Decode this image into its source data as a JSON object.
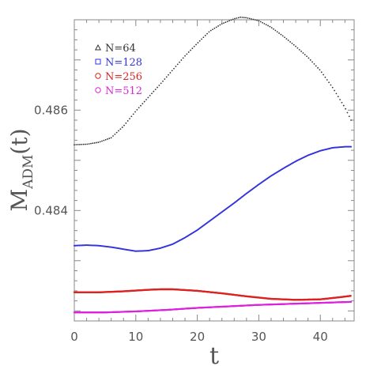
{
  "chart_data": {
    "type": "scatter",
    "title": "",
    "xlabel": "t",
    "ylabel": {
      "main": "M",
      "sub": "ADM",
      "arg": "(t)"
    },
    "xlim": [
      0,
      45.5
    ],
    "ylim": [
      0.4818,
      0.4878
    ],
    "x_ticks": [
      0,
      10,
      20,
      30,
      40
    ],
    "x_tick_labels": [
      "0",
      "10",
      "20",
      "30",
      "40"
    ],
    "y_ticks": [
      0.484,
      0.486
    ],
    "y_tick_labels": [
      "0.484",
      "0.486"
    ],
    "grid": false,
    "legend_position": "top-left",
    "series": [
      {
        "name": "N=64",
        "color": "#333333",
        "marker": "triangle",
        "points": [
          [
            0,
            0.48531
          ],
          [
            2,
            0.48532
          ],
          [
            4,
            0.48536
          ],
          [
            6,
            0.48545
          ],
          [
            8,
            0.48568
          ],
          [
            10,
            0.48598
          ],
          [
            12,
            0.48625
          ],
          [
            14,
            0.48652
          ],
          [
            16,
            0.4868
          ],
          [
            18,
            0.48708
          ],
          [
            20,
            0.48733
          ],
          [
            22,
            0.48757
          ],
          [
            24,
            0.48772
          ],
          [
            26,
            0.48782
          ],
          [
            27,
            0.48785
          ],
          [
            28,
            0.48784
          ],
          [
            30,
            0.48778
          ],
          [
            32,
            0.48765
          ],
          [
            34,
            0.48747
          ],
          [
            36,
            0.48727
          ],
          [
            38,
            0.48705
          ],
          [
            40,
            0.48679
          ],
          [
            42,
            0.48645
          ],
          [
            44,
            0.48605
          ],
          [
            45,
            0.4858
          ]
        ]
      },
      {
        "name": "N=128",
        "color": "#3333dd",
        "marker": "square",
        "points": [
          [
            0,
            0.4833
          ],
          [
            2,
            0.48331
          ],
          [
            4,
            0.4833
          ],
          [
            6,
            0.48327
          ],
          [
            8,
            0.48323
          ],
          [
            10,
            0.48319
          ],
          [
            12,
            0.4832
          ],
          [
            14,
            0.48325
          ],
          [
            16,
            0.48333
          ],
          [
            18,
            0.48346
          ],
          [
            20,
            0.48361
          ],
          [
            22,
            0.48379
          ],
          [
            24,
            0.48397
          ],
          [
            26,
            0.48415
          ],
          [
            28,
            0.48434
          ],
          [
            30,
            0.48452
          ],
          [
            32,
            0.48469
          ],
          [
            34,
            0.48484
          ],
          [
            36,
            0.48498
          ],
          [
            38,
            0.4851
          ],
          [
            40,
            0.48519
          ],
          [
            42,
            0.48525
          ],
          [
            44,
            0.48527
          ],
          [
            45,
            0.48527
          ]
        ]
      },
      {
        "name": "N=256",
        "color": "#dd2222",
        "marker": "circle",
        "points": [
          [
            0,
            0.48237
          ],
          [
            4,
            0.48237
          ],
          [
            8,
            0.48239
          ],
          [
            12,
            0.48242
          ],
          [
            14,
            0.48243
          ],
          [
            16,
            0.48243
          ],
          [
            20,
            0.4824
          ],
          [
            24,
            0.48235
          ],
          [
            28,
            0.48229
          ],
          [
            32,
            0.48224
          ],
          [
            36,
            0.48222
          ],
          [
            40,
            0.48223
          ],
          [
            43,
            0.48227
          ],
          [
            45,
            0.4823
          ]
        ]
      },
      {
        "name": "N=512",
        "color": "#dd22dd",
        "marker": "circle",
        "points": [
          [
            0,
            0.48197
          ],
          [
            5,
            0.48197
          ],
          [
            10,
            0.48199
          ],
          [
            15,
            0.48202
          ],
          [
            20,
            0.48206
          ],
          [
            25,
            0.48209
          ],
          [
            30,
            0.48212
          ],
          [
            35,
            0.48214
          ],
          [
            40,
            0.48216
          ],
          [
            45,
            0.48218
          ]
        ]
      }
    ]
  }
}
